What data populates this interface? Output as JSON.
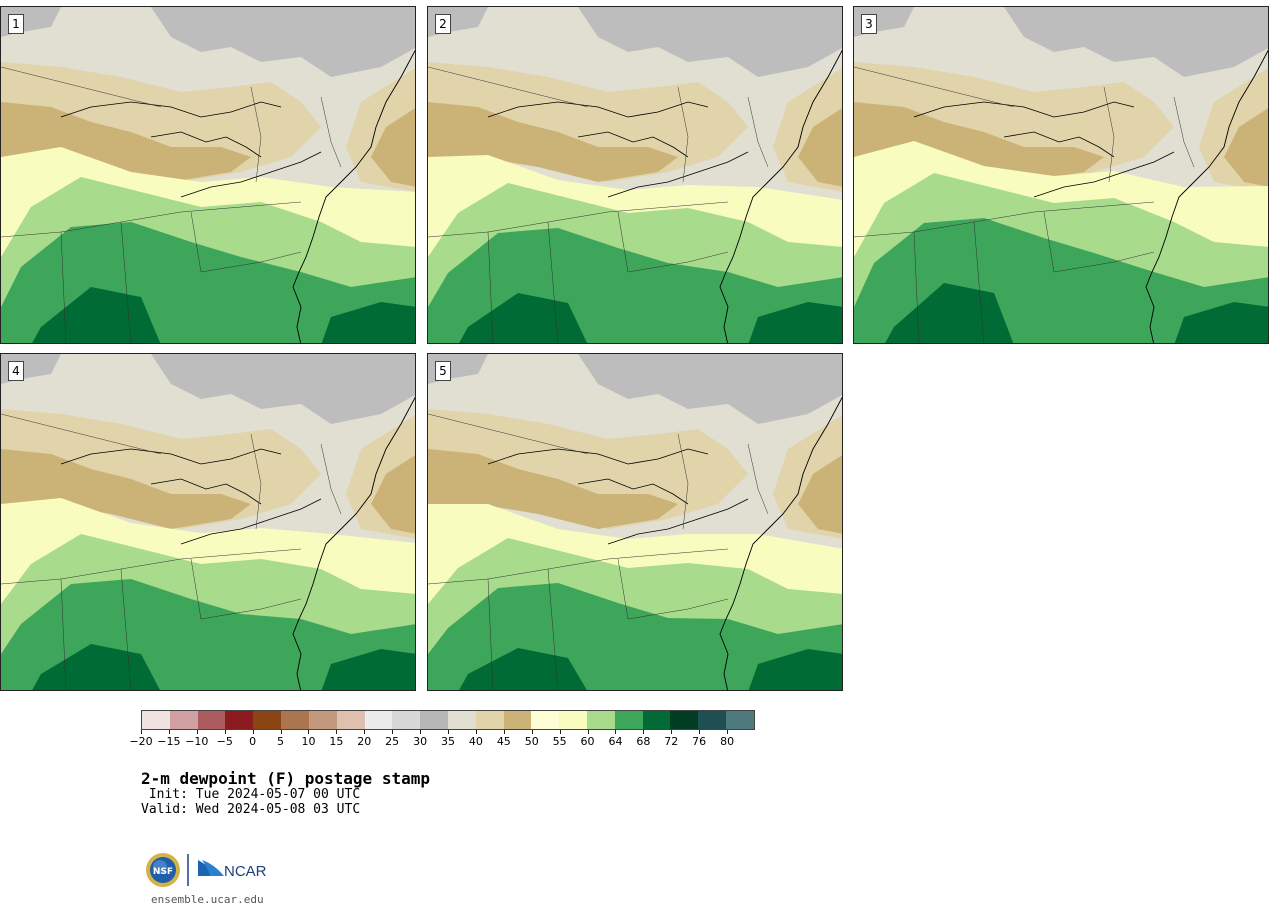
{
  "panels": [
    {
      "label": "1"
    },
    {
      "label": "2"
    },
    {
      "label": "3"
    },
    {
      "label": "4"
    },
    {
      "label": "5"
    }
  ],
  "colorbar": {
    "colors": [
      "#f1e2e2",
      "#d1a0a3",
      "#ac5b5f",
      "#8c1b1f",
      "#8b4513",
      "#ab7550",
      "#c49a7e",
      "#ddc0b0",
      "#ececec",
      "#d7d7d7",
      "#b7b7b7",
      "#e0dfd2",
      "#e1d3aa",
      "#cbb377",
      "#fdfdd6",
      "#f8fcbf",
      "#a8db8b",
      "#3ea65a",
      "#006b35",
      "#013d22",
      "#1e4f52",
      "#4f7a7d"
    ],
    "tick_labels": [
      "−20",
      "−15",
      "−10",
      "−5",
      "0",
      "5",
      "10",
      "15",
      "20",
      "25",
      "30",
      "35",
      "40",
      "45",
      "50",
      "55",
      "60",
      "64",
      "68",
      "72",
      "76",
      "80"
    ]
  },
  "title": "2-m dewpoint (F) postage stamp",
  "init_line": " Init: Tue 2024-05-07 00 UTC",
  "valid_line": "Valid: Wed 2024-05-08 03 UTC",
  "logos": {
    "nsf": "NSF",
    "ncar": "NCAR"
  },
  "url": "ensemble.ucar.edu",
  "map_colors": {
    "gray_dark": "#bdbdbd",
    "gray_light": "#e0dfd2",
    "tan_light": "#e1d3aa",
    "tan_dark": "#cbb377",
    "yellow": "#f8fcbf",
    "green_light": "#a8db8b",
    "green_mid": "#3ea65a",
    "green_dark": "#006b35"
  }
}
